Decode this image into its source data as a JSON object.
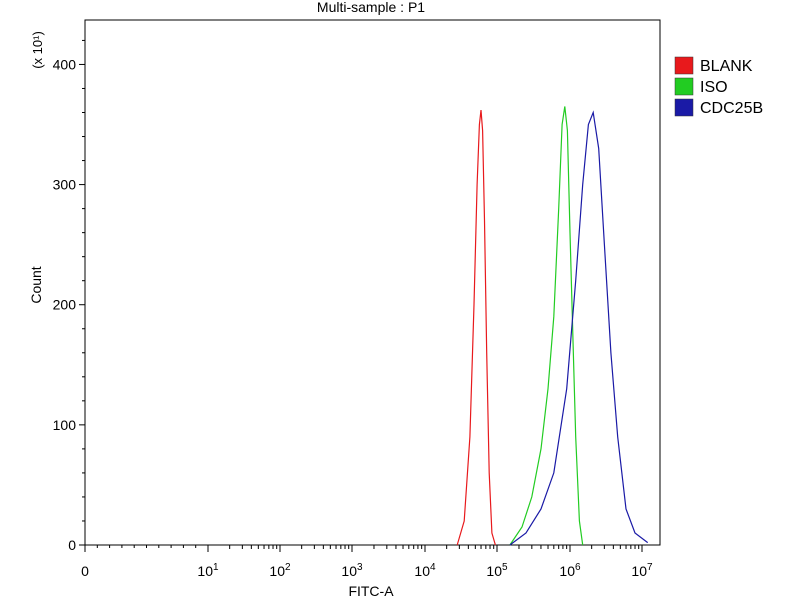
{
  "chart_data": {
    "type": "line",
    "title": "Multi-sample : P1",
    "xlabel": "FITC-A",
    "ylabel": "Count",
    "y_multiplier_label": "(x 10¹)",
    "xscale": "log",
    "xlim": [
      0,
      12000000
    ],
    "ylim": [
      0,
      437
    ],
    "grid": false,
    "legend_position": "top-right",
    "x_tick_labels": [
      {
        "base": "0",
        "exp": ""
      },
      {
        "base": "10",
        "exp": "1"
      },
      {
        "base": "10",
        "exp": "2"
      },
      {
        "base": "10",
        "exp": "3"
      },
      {
        "base": "10",
        "exp": "4"
      },
      {
        "base": "10",
        "exp": "5"
      },
      {
        "base": "10",
        "exp": "6"
      },
      {
        "base": "10",
        "exp": "7"
      }
    ],
    "y_ticks": [
      0,
      100,
      200,
      300,
      400
    ],
    "y_tick_labels": [
      "0",
      "100",
      "200",
      "300",
      "400"
    ],
    "series": [
      {
        "name": "BLANK",
        "color": "#e8191c",
        "x": [
          28000,
          35000,
          42000,
          48000,
          53000,
          57000,
          60000,
          63000,
          67000,
          72000,
          78000,
          85000,
          95000
        ],
        "y": [
          0,
          20,
          90,
          200,
          300,
          350,
          362,
          345,
          270,
          160,
          60,
          10,
          0
        ]
      },
      {
        "name": "ISO",
        "color": "#22cc22",
        "x": [
          150000,
          220000,
          300000,
          400000,
          500000,
          600000,
          700000,
          780000,
          850000,
          920000,
          1000000,
          1100000,
          1200000,
          1350000,
          1500000
        ],
        "y": [
          0,
          15,
          40,
          80,
          130,
          190,
          280,
          350,
          365,
          345,
          260,
          170,
          90,
          20,
          0
        ]
      },
      {
        "name": "CDC25B",
        "color": "#1a1aa6",
        "x": [
          150000,
          250000,
          400000,
          600000,
          900000,
          1200000,
          1500000,
          1800000,
          2100000,
          2500000,
          3000000,
          3700000,
          4600000,
          6000000,
          8000000,
          12000000
        ],
        "y": [
          0,
          10,
          30,
          60,
          130,
          220,
          300,
          350,
          360,
          330,
          250,
          160,
          90,
          30,
          10,
          2
        ]
      }
    ]
  }
}
